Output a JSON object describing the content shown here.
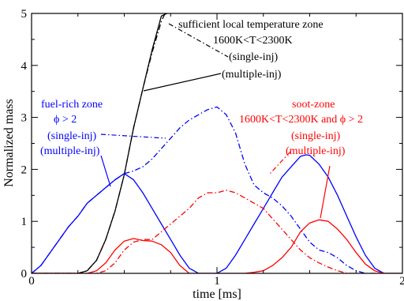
{
  "chart_data": {
    "type": "line",
    "xlabel": "time [ms]",
    "ylabel": "Normalized mass",
    "xlim": [
      0,
      2
    ],
    "ylim": [
      0,
      5
    ],
    "x_ticks": [
      "0",
      "1",
      "2"
    ],
    "y_ticks": [
      "0",
      "1",
      "2",
      "3",
      "4",
      "5"
    ],
    "grid": false,
    "colors": {
      "black": "#000000",
      "blue": "#0000ff",
      "red": "#ff0000"
    },
    "series": [
      {
        "color": "#000000",
        "dash": "dashdot",
        "x": [
          0,
          0.25,
          0.3,
          0.35,
          0.4,
          0.45,
          0.5,
          0.55,
          0.6,
          0.65,
          0.7,
          0.72
        ],
        "y": [
          0,
          0,
          0.05,
          0.25,
          0.65,
          1.2,
          1.9,
          2.8,
          3.55,
          4.25,
          4.85,
          5.0
        ]
      },
      {
        "color": "#000000",
        "dash": "solid",
        "x": [
          0,
          0.25,
          0.3,
          0.35,
          0.4,
          0.45,
          0.5,
          0.55,
          0.6,
          0.65,
          0.7,
          0.73
        ],
        "y": [
          0,
          0,
          0.05,
          0.25,
          0.65,
          1.2,
          1.9,
          2.8,
          3.55,
          4.3,
          4.95,
          5.0
        ]
      },
      {
        "color": "#0000ff",
        "dash": "dashdot",
        "x": [
          0,
          0.05,
          0.1,
          0.15,
          0.2,
          0.25,
          0.3,
          0.35,
          0.4,
          0.45,
          0.5,
          0.55,
          0.6,
          0.65,
          0.7,
          0.75,
          0.8,
          0.85,
          0.9,
          0.95,
          1.0,
          1.05,
          1.1,
          1.15,
          1.2,
          1.25,
          1.3,
          1.35,
          1.4,
          1.45,
          1.5,
          1.55,
          1.6,
          1.65,
          1.7,
          1.75,
          1.8,
          1.85,
          1.9
        ],
        "y": [
          0,
          0.15,
          0.4,
          0.65,
          0.9,
          1.1,
          1.35,
          1.5,
          1.65,
          1.8,
          1.92,
          1.97,
          2.05,
          2.2,
          2.4,
          2.6,
          2.8,
          2.95,
          3.05,
          3.15,
          3.2,
          3.05,
          2.7,
          2.1,
          1.7,
          1.55,
          1.45,
          1.3,
          1.1,
          0.85,
          0.6,
          0.45,
          0.4,
          0.3,
          0.15,
          0.05,
          0,
          0,
          0
        ]
      },
      {
        "color": "#0000ff",
        "dash": "solid",
        "x": [
          0,
          0.05,
          0.1,
          0.15,
          0.2,
          0.25,
          0.3,
          0.35,
          0.4,
          0.45,
          0.5,
          0.55,
          0.6,
          0.65,
          0.7,
          0.75,
          0.8,
          0.85,
          0.9,
          0.95,
          1.0,
          1.05,
          1.1,
          1.15,
          1.2,
          1.25,
          1.3,
          1.35,
          1.4,
          1.45,
          1.48,
          1.5,
          1.55,
          1.6,
          1.65,
          1.7,
          1.75,
          1.8,
          1.85,
          1.9,
          2.0
        ],
        "y": [
          0,
          0.15,
          0.4,
          0.65,
          0.9,
          1.1,
          1.35,
          1.5,
          1.65,
          1.8,
          1.92,
          1.8,
          1.55,
          1.25,
          0.95,
          0.65,
          0.35,
          0.1,
          0,
          0,
          0,
          0.1,
          0.35,
          0.65,
          0.95,
          1.25,
          1.55,
          1.85,
          2.05,
          2.25,
          2.28,
          2.27,
          2.1,
          1.85,
          1.5,
          1.1,
          0.7,
          0.35,
          0.1,
          0,
          0
        ]
      },
      {
        "color": "#ff0000",
        "dash": "dashdot",
        "x": [
          0,
          0.35,
          0.4,
          0.45,
          0.5,
          0.55,
          0.6,
          0.65,
          0.7,
          0.75,
          0.8,
          0.85,
          0.9,
          0.95,
          1.0,
          1.05,
          1.1,
          1.15,
          1.2,
          1.25,
          1.3,
          1.35,
          1.4,
          1.45,
          1.5,
          1.55,
          1.6,
          1.65,
          1.7,
          1.75,
          1.8
        ],
        "y": [
          0,
          0,
          0.05,
          0.2,
          0.45,
          0.6,
          0.65,
          0.65,
          0.8,
          0.95,
          1.1,
          1.25,
          1.45,
          1.55,
          1.55,
          1.6,
          1.55,
          1.45,
          1.35,
          1.25,
          1.05,
          0.85,
          0.65,
          0.45,
          0.3,
          0.2,
          0.12,
          0.05,
          0,
          0,
          0
        ]
      },
      {
        "color": "#ff0000",
        "dash": "solid",
        "x": [
          0,
          0.3,
          0.35,
          0.4,
          0.45,
          0.5,
          0.55,
          0.6,
          0.65,
          0.7,
          0.75,
          0.8,
          0.85,
          0.9,
          0.95,
          1.0,
          1.05,
          1.1,
          1.15,
          1.2,
          1.25,
          1.3,
          1.35,
          1.4,
          1.45,
          1.5,
          1.55,
          1.6,
          1.65,
          1.7,
          1.75,
          1.8,
          1.85,
          1.9,
          2.0
        ],
        "y": [
          0,
          0,
          0.05,
          0.2,
          0.45,
          0.62,
          0.67,
          0.63,
          0.62,
          0.55,
          0.4,
          0.15,
          0,
          0,
          0,
          0,
          0,
          0,
          0,
          0.02,
          0.05,
          0.15,
          0.3,
          0.5,
          0.8,
          0.97,
          1.03,
          1.0,
          0.85,
          0.65,
          0.4,
          0.18,
          0.05,
          0,
          0
        ]
      }
    ],
    "annotations": {
      "temp_zone_title": "sufficient local temperature zone",
      "temp_zone_range": "1600K<T<2300K",
      "temp_single": "(single-inj)",
      "temp_multiple": "(multiple-inj)",
      "fuel_rich_title": "fuel-rich zone",
      "fuel_rich_cond": "ϕ > 2",
      "fuel_single": "(single-inj)",
      "fuel_multiple": "(multiple-inj)",
      "soot_title": "soot-zone",
      "soot_cond": "1600K<T<2300K  and  ϕ > 2",
      "soot_single": "(single-inj)",
      "soot_multiple": "(multiple-inj)"
    }
  }
}
